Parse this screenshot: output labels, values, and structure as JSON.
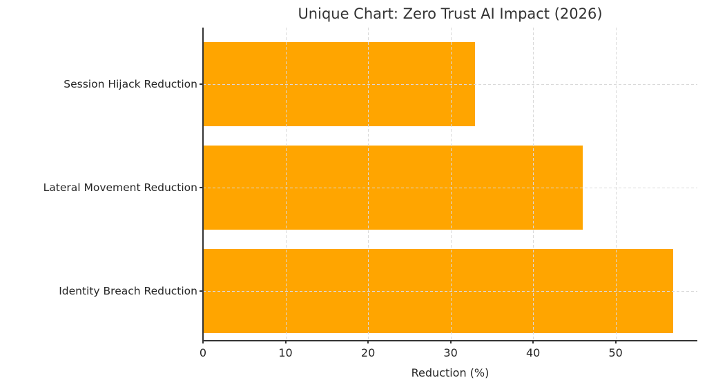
{
  "chart_data": {
    "type": "bar",
    "orientation": "horizontal",
    "title": "Unique Chart: Zero Trust AI Impact (2026)",
    "xlabel": "Reduction (%)",
    "ylabel": "",
    "categories": [
      "Session Hijack Reduction",
      "Lateral Movement Reduction",
      "Identity Breach Reduction"
    ],
    "values": [
      33,
      46,
      57
    ],
    "xticks": [
      0,
      10,
      20,
      30,
      40,
      50
    ],
    "xlim": [
      0,
      59.9
    ],
    "grid": "dashed light-gray, vertical at xticks and horizontal at category centers, drawn over bars",
    "legend": "none",
    "bar_color": "#FFA500",
    "spine_color": "#333333",
    "grid_color": "#d9d9d9",
    "text_color": "#262626"
  }
}
